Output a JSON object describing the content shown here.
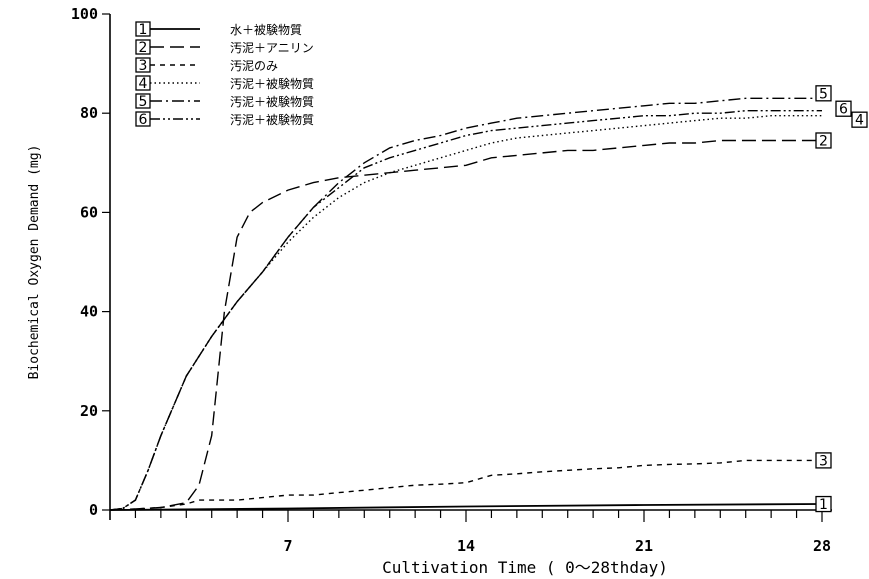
{
  "chart_data": {
    "type": "line",
    "xlabel": "Cultivation Time ( 0～28thday)",
    "ylabel": "Biochemical Oxygen Demand (mg)",
    "xlim": [
      0,
      28
    ],
    "ylim": [
      0,
      100
    ],
    "x_ticks": [
      7,
      14,
      21,
      28
    ],
    "y_ticks": [
      0,
      20,
      40,
      60,
      80,
      100
    ],
    "grid": false,
    "legend_position": "top-left",
    "series": [
      {
        "id": "1",
        "name": "水＋被験物質",
        "dash": "solid",
        "x": [
          0,
          7,
          14,
          21,
          28
        ],
        "y": [
          0,
          0.3,
          0.7,
          1.0,
          1.2
        ]
      },
      {
        "id": "2",
        "name": "汚泥＋アニリン",
        "dash": "dash",
        "x": [
          0,
          1,
          2,
          3,
          3.5,
          4,
          4.5,
          5,
          5.5,
          6,
          7,
          8,
          9,
          10,
          11,
          12,
          13,
          14,
          15,
          16,
          17,
          18,
          19,
          20,
          21,
          22,
          23,
          24,
          25,
          26,
          27,
          28
        ],
        "y": [
          0,
          0.2,
          0.5,
          1.5,
          5,
          15,
          40,
          55,
          60,
          62,
          64.5,
          66,
          67,
          67.5,
          68,
          68.5,
          69,
          69.5,
          71,
          71.5,
          72,
          72.5,
          72.5,
          73,
          73.5,
          74,
          74,
          74.5,
          74.5,
          74.5,
          74.5,
          74.5
        ]
      },
      {
        "id": "3",
        "name": "汚泥のみ",
        "dash": "shortdash",
        "x": [
          0,
          1,
          2,
          3,
          3.5,
          4,
          5,
          6,
          7,
          8,
          9,
          10,
          11,
          12,
          13,
          14,
          15,
          16,
          17,
          18,
          19,
          20,
          21,
          22,
          23,
          24,
          25,
          26,
          27,
          28
        ],
        "y": [
          0,
          0.2,
          0.5,
          1.2,
          2,
          2,
          2,
          2.5,
          3,
          3,
          3.5,
          4,
          4.5,
          5,
          5.2,
          5.5,
          7,
          7.3,
          7.7,
          8,
          8.3,
          8.5,
          9,
          9.2,
          9.3,
          9.5,
          10,
          10,
          10,
          10
        ]
      },
      {
        "id": "4",
        "name": "汚泥＋被験物質",
        "dash": "dot",
        "x": [
          0,
          0.5,
          1,
          1.5,
          2,
          3,
          4,
          5,
          6,
          7,
          8,
          9,
          10,
          11,
          12,
          13,
          14,
          15,
          16,
          17,
          18,
          19,
          20,
          21,
          22,
          23,
          24,
          25,
          26,
          27,
          28
        ],
        "y": [
          0,
          0.3,
          2,
          8,
          15,
          27,
          35,
          42,
          48,
          54,
          59,
          63,
          66,
          68,
          69.5,
          71,
          72.5,
          74,
          75,
          75.5,
          76,
          76.5,
          77,
          77.5,
          78,
          78.5,
          79,
          79,
          79.5,
          79.5,
          79.5
        ]
      },
      {
        "id": "5",
        "name": "汚泥＋被験物質",
        "dash": "dashdot",
        "x": [
          0,
          0.5,
          1,
          1.5,
          2,
          3,
          4,
          5,
          6,
          7,
          8,
          9,
          10,
          11,
          12,
          13,
          14,
          15,
          16,
          17,
          18,
          19,
          20,
          21,
          22,
          23,
          24,
          25,
          26,
          27,
          28
        ],
        "y": [
          0,
          0.3,
          2,
          8,
          15,
          27,
          35,
          42,
          48,
          55,
          61,
          66,
          70,
          73,
          74.5,
          75.5,
          77,
          78,
          79,
          79.5,
          80,
          80.5,
          81,
          81.5,
          82,
          82,
          82.5,
          83,
          83,
          83,
          83
        ]
      },
      {
        "id": "6",
        "name": "汚泥＋被験物質",
        "dash": "dashdotdot",
        "x": [
          0,
          0.5,
          1,
          1.5,
          2,
          3,
          4,
          5,
          6,
          7,
          8,
          9,
          10,
          11,
          12,
          13,
          14,
          15,
          16,
          17,
          18,
          19,
          20,
          21,
          22,
          23,
          24,
          25,
          26,
          27,
          28
        ],
        "y": [
          0,
          0.3,
          2,
          8,
          15,
          27,
          35,
          42,
          48,
          55,
          61,
          65,
          69,
          71,
          72.5,
          74,
          75.5,
          76.5,
          77,
          77.5,
          78,
          78.5,
          79,
          79.5,
          79.5,
          80,
          80,
          80.5,
          80.5,
          80.5,
          80.5
        ]
      }
    ]
  }
}
